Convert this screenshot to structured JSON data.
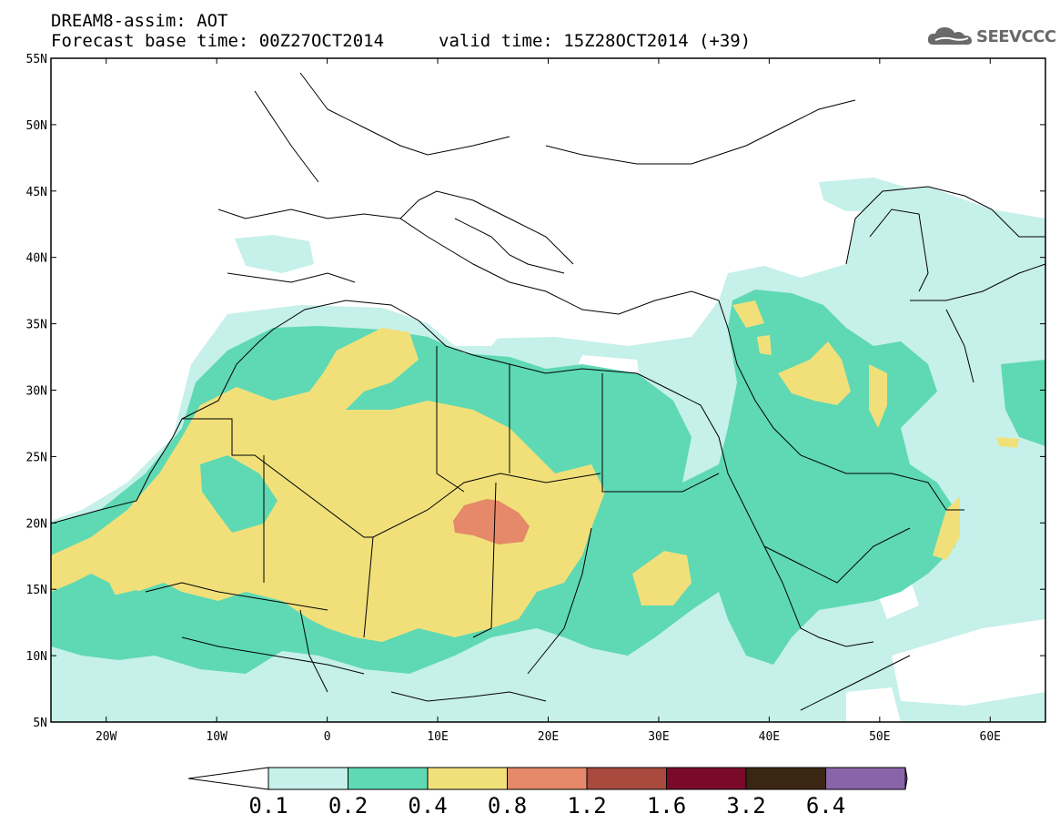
{
  "header": {
    "title": "DREAM8-assim: AOT",
    "base_time": "Forecast base time: 00Z27OCT2014",
    "valid_time": "valid time: 15Z28OCT2014 (+39)",
    "logo_text": "SEEVCCC",
    "logo_icon": "cloud-icon"
  },
  "map": {
    "lat_labels": [
      "55N",
      "50N",
      "45N",
      "40N",
      "35N",
      "30N",
      "25N",
      "20N",
      "15N",
      "10N",
      "5N"
    ],
    "lon_labels": [
      "20W",
      "10W",
      "0",
      "10E",
      "20E",
      "30E",
      "40E",
      "50E",
      "60E"
    ],
    "lat_range": [
      5,
      55
    ],
    "lon_range": [
      -25,
      65
    ],
    "coastline_color": "#000000",
    "background": "#ffffff"
  },
  "colorbar": {
    "labels": [
      "0.1",
      "0.2",
      "0.4",
      "0.8",
      "1.2",
      "1.6",
      "3.2",
      "6.4"
    ],
    "colors": [
      "#ffffff",
      "#c6f0ea",
      "#5ed9b3",
      "#f1e07a",
      "#e5896a",
      "#a84a3e",
      "#7a0a2a",
      "#3b2614",
      "#8a64a8"
    ]
  }
}
